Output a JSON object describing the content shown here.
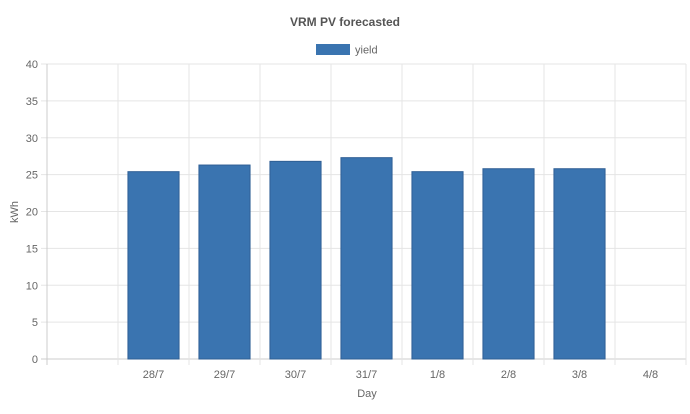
{
  "chart_data": {
    "type": "bar",
    "title": "VRM PV forecasted",
    "xlabel": "Day",
    "ylabel": "kWh",
    "categories": [
      "",
      "28/7",
      "29/7",
      "30/7",
      "31/7",
      "1/8",
      "2/8",
      "3/8",
      "4/8"
    ],
    "series": [
      {
        "name": "yield",
        "color": "#3a74b0",
        "values": [
          null,
          25.4,
          26.3,
          26.8,
          27.3,
          25.4,
          25.8,
          25.8,
          null
        ]
      }
    ],
    "ylim": [
      0,
      40
    ],
    "yticks": [
      0,
      5,
      10,
      15,
      20,
      25,
      30,
      35,
      40
    ],
    "grid": true,
    "legend": "top-center"
  }
}
